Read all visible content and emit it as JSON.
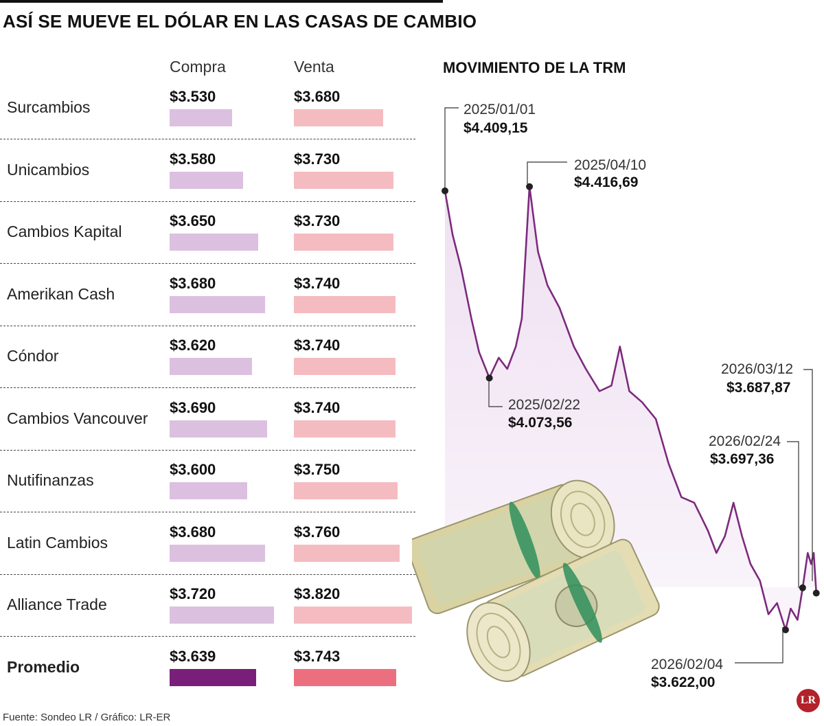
{
  "title": "ASÍ SE MUEVE EL DÓLAR EN LAS CASAS DE CAMBIO",
  "table": {
    "col_buy": "Compra",
    "col_sell": "Venta",
    "rows": [
      {
        "name": "Surcambios",
        "buy_label": "$3.530",
        "sell_label": "$3.680",
        "buy": 3530,
        "sell": 3680
      },
      {
        "name": "Unicambios",
        "buy_label": "$3.580",
        "sell_label": "$3.730",
        "buy": 3580,
        "sell": 3730
      },
      {
        "name": "Cambios Kapital",
        "buy_label": "$3.650",
        "sell_label": "$3.730",
        "buy": 3650,
        "sell": 3730
      },
      {
        "name": "Amerikan Cash",
        "buy_label": "$3.680",
        "sell_label": "$3.740",
        "buy": 3680,
        "sell": 3740
      },
      {
        "name": "Cóndor",
        "buy_label": "$3.620",
        "sell_label": "$3.740",
        "buy": 3620,
        "sell": 3740
      },
      {
        "name": "Cambios Vancouver",
        "buy_label": "$3.690",
        "sell_label": "$3.740",
        "buy": 3690,
        "sell": 3740
      },
      {
        "name": "Nutifinanzas",
        "buy_label": "$3.600",
        "sell_label": "$3.750",
        "buy": 3600,
        "sell": 3750
      },
      {
        "name": "Latin Cambios",
        "buy_label": "$3.680",
        "sell_label": "$3.760",
        "buy": 3680,
        "sell": 3760
      },
      {
        "name": "Alliance Trade",
        "buy_label": "$3.720",
        "sell_label": "$3.820",
        "buy": 3720,
        "sell": 3820
      }
    ],
    "average": {
      "name": "Promedio",
      "buy_label": "$3.639",
      "sell_label": "$3.743",
      "buy": 3639,
      "sell": 3743
    }
  },
  "colors": {
    "buy_bar": "#dcc0e0",
    "sell_bar": "#f4bcc0",
    "avg_buy_bar": "#7a1f79",
    "avg_sell_bar": "#ec6f80",
    "line": "#7b2a7d",
    "area": "#f3e6f4"
  },
  "chart_data": {
    "type": "line",
    "title": "MOVIMIENTO DE LA TRM",
    "x_range": [
      "2025/01/01",
      "2026/03/13"
    ],
    "ylim": [
      3580,
      4500
    ],
    "annotations": [
      {
        "date": "2025/01/01",
        "value_label": "$4.409,15",
        "value": 4409.15
      },
      {
        "date": "2025/04/10",
        "value_label": "$4.416,69",
        "value": 4416.69
      },
      {
        "date": "2025/02/22",
        "value_label": "$4.073,56",
        "value": 4073.56
      },
      {
        "date": "2026/03/12",
        "value_label": "$3.687,87",
        "value": 3687.87
      },
      {
        "date": "2026/02/24",
        "value_label": "$3.697,36",
        "value": 3697.36
      },
      {
        "date": "2026/02/04",
        "value_label": "$3.622,00",
        "value": 3622.0
      }
    ],
    "series": [
      {
        "x": "2025/01/01",
        "y": 4409
      },
      {
        "x": "2025/01/10",
        "y": 4330
      },
      {
        "x": "2025/01/20",
        "y": 4270
      },
      {
        "x": "2025/02/01",
        "y": 4180
      },
      {
        "x": "2025/02/10",
        "y": 4120
      },
      {
        "x": "2025/02/22",
        "y": 4074
      },
      {
        "x": "2025/03/05",
        "y": 4110
      },
      {
        "x": "2025/03/15",
        "y": 4090
      },
      {
        "x": "2025/03/25",
        "y": 4130
      },
      {
        "x": "2025/04/01",
        "y": 4180
      },
      {
        "x": "2025/04/10",
        "y": 4417
      },
      {
        "x": "2025/04/20",
        "y": 4300
      },
      {
        "x": "2025/05/01",
        "y": 4240
      },
      {
        "x": "2025/05/15",
        "y": 4200
      },
      {
        "x": "2025/06/01",
        "y": 4130
      },
      {
        "x": "2025/06/15",
        "y": 4090
      },
      {
        "x": "2025/07/01",
        "y": 4050
      },
      {
        "x": "2025/07/15",
        "y": 4060
      },
      {
        "x": "2025/07/25",
        "y": 4130
      },
      {
        "x": "2025/08/05",
        "y": 4050
      },
      {
        "x": "2025/08/20",
        "y": 4030
      },
      {
        "x": "2025/09/05",
        "y": 4000
      },
      {
        "x": "2025/09/20",
        "y": 3920
      },
      {
        "x": "2025/10/05",
        "y": 3860
      },
      {
        "x": "2025/10/20",
        "y": 3850
      },
      {
        "x": "2025/11/05",
        "y": 3800
      },
      {
        "x": "2025/11/15",
        "y": 3760
      },
      {
        "x": "2025/11/25",
        "y": 3790
      },
      {
        "x": "2025/12/05",
        "y": 3850
      },
      {
        "x": "2025/12/15",
        "y": 3790
      },
      {
        "x": "2025/12/25",
        "y": 3740
      },
      {
        "x": "2026/01/05",
        "y": 3710
      },
      {
        "x": "2026/01/15",
        "y": 3650
      },
      {
        "x": "2026/01/25",
        "y": 3670
      },
      {
        "x": "2026/02/04",
        "y": 3622
      },
      {
        "x": "2026/02/10",
        "y": 3660
      },
      {
        "x": "2026/02/18",
        "y": 3640
      },
      {
        "x": "2026/02/24",
        "y": 3697
      },
      {
        "x": "2026/03/02",
        "y": 3760
      },
      {
        "x": "2026/03/06",
        "y": 3740
      },
      {
        "x": "2026/03/09",
        "y": 3760
      },
      {
        "x": "2026/03/12",
        "y": 3688
      }
    ]
  },
  "footer": {
    "source": "Fuente: Sondeo LR / Gráfico: LR-ER",
    "logo": "LR"
  }
}
